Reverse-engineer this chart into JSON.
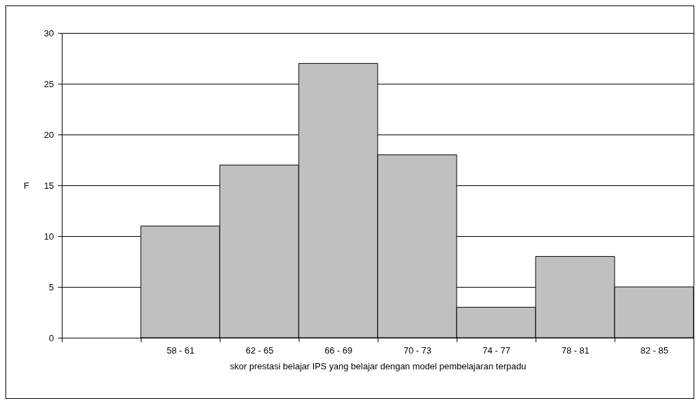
{
  "chart_data": {
    "type": "bar",
    "xlabel": "skor prestasi belajar IPS yang belajar dengan model pembelajaran terpadu",
    "ylabel": "F",
    "categories": [
      null,
      "58 - 61",
      "62 - 65",
      "66 - 69",
      "70 - 73",
      "74 - 77",
      "78 - 81",
      "82 - 85"
    ],
    "values": [
      null,
      11,
      17,
      27,
      18,
      3,
      8,
      5
    ],
    "color": "#c0c0c0",
    "ylim": [
      0,
      30
    ],
    "yticks": [
      0,
      5,
      10,
      15,
      20,
      25,
      30
    ],
    "grid": "y"
  }
}
